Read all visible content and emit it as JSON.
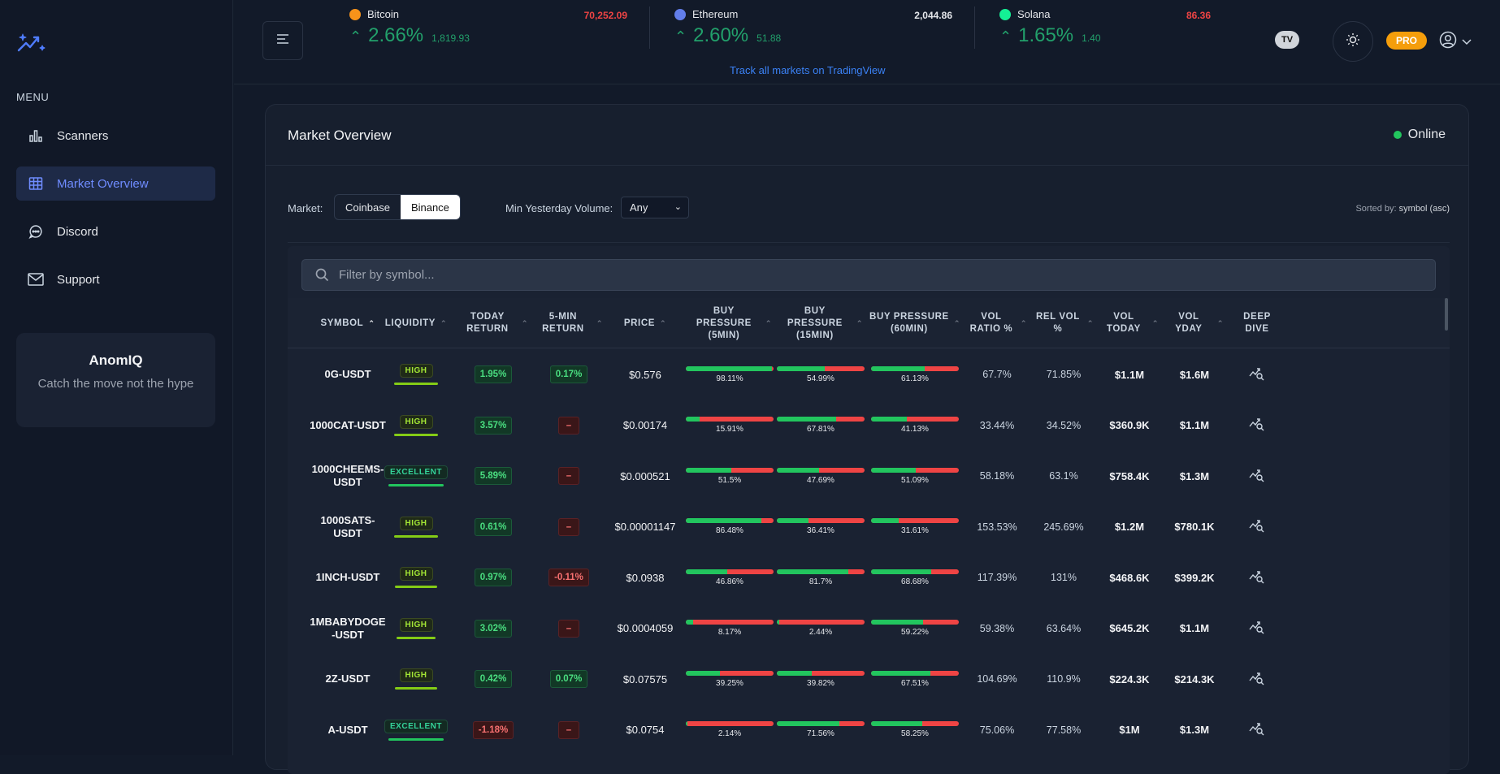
{
  "sidebar": {
    "menu_label": "MENU",
    "items": [
      {
        "label": "Scanners",
        "icon": "bar-chart-icon",
        "active": false
      },
      {
        "label": "Market Overview",
        "icon": "table-grid-icon",
        "active": true
      },
      {
        "label": "Discord",
        "icon": "chat-bubble-icon",
        "active": false
      },
      {
        "label": "Support",
        "icon": "mail-icon",
        "active": false
      }
    ],
    "promo": {
      "title": "AnomIQ",
      "subtitle": "Catch the move not the hype"
    }
  },
  "header": {
    "tickers": [
      {
        "name": "Bitcoin",
        "price": "70,252.09",
        "price_color": "#ef4444",
        "pct": "2.66%",
        "change": "1,819.93",
        "coin_color": "#f7931a"
      },
      {
        "name": "Ethereum",
        "price": "2,044.86",
        "price_color": "#e5e7eb",
        "pct": "2.60%",
        "change": "51.88",
        "coin_color": "#627eea"
      },
      {
        "name": "Solana",
        "price": "86.36",
        "price_color": "#ef4444",
        "pct": "1.65%",
        "change": "1.40",
        "coin_color": "#14f195"
      }
    ],
    "tv_link": "Track all markets on TradingView",
    "tv_badge": "TV",
    "pro_label": "PRO"
  },
  "panel": {
    "title": "Market Overview",
    "status": "Online",
    "market_label": "Market:",
    "markets": [
      "Coinbase",
      "Binance"
    ],
    "selected_market": "Binance",
    "volume_label": "Min Yesterday Volume:",
    "volume_value": "Any",
    "sorted_prefix": "Sorted by:",
    "sorted_value": "symbol (asc)",
    "search_placeholder": "Filter by symbol..."
  },
  "table": {
    "headers": [
      "SYMBOL",
      "LIQUIDITY",
      "TODAY RETURN",
      "5-MIN RETURN",
      "PRICE",
      "BUY PRESSURE (5MIN)",
      "BUY PRESSURE (15MIN)",
      "BUY PRESSURE (60MIN)",
      "VOL RATIO %",
      "REL VOL %",
      "VOL TODAY",
      "VOL YDAY",
      "DEEP DIVE"
    ],
    "rows": [
      {
        "symbol": "0G-USDT",
        "liquidity": "HIGH",
        "liq_fill": 0.85,
        "today": "1.95%",
        "today_pos": true,
        "five": "0.17%",
        "five_state": "pos",
        "price": "$0.576",
        "bp5": 98.11,
        "bp5_label": "98.11%",
        "bp15": 54.99,
        "bp15_label": "54.99%",
        "bp60": 61.13,
        "bp60_label": "61.13%",
        "vol_ratio": "67.7%",
        "rel_vol": "71.85%",
        "vol_today": "$1.1M",
        "vol_yday": "$1.6M"
      },
      {
        "symbol": "1000CAT-USDT",
        "liquidity": "HIGH",
        "liq_fill": 0.85,
        "today": "3.57%",
        "today_pos": true,
        "five": "–",
        "five_state": "na",
        "price": "$0.00174",
        "bp5": 15.91,
        "bp5_label": "15.91%",
        "bp15": 67.81,
        "bp15_label": "67.81%",
        "bp60": 41.13,
        "bp60_label": "41.13%",
        "vol_ratio": "33.44%",
        "rel_vol": "34.52%",
        "vol_today": "$360.9K",
        "vol_yday": "$1.1M"
      },
      {
        "symbol": "1000CHEEMS-USDT",
        "liquidity": "EXCELLENT",
        "liq_fill": 1.0,
        "today": "5.89%",
        "today_pos": true,
        "five": "–",
        "five_state": "na",
        "price": "$0.000521",
        "bp5": 51.5,
        "bp5_label": "51.5%",
        "bp15": 47.69,
        "bp15_label": "47.69%",
        "bp60": 51.09,
        "bp60_label": "51.09%",
        "vol_ratio": "58.18%",
        "rel_vol": "63.1%",
        "vol_today": "$758.4K",
        "vol_yday": "$1.3M"
      },
      {
        "symbol": "1000SATS-USDT",
        "liquidity": "HIGH",
        "liq_fill": 0.85,
        "today": "0.61%",
        "today_pos": true,
        "five": "–",
        "five_state": "na",
        "price": "$0.00001147",
        "bp5": 86.48,
        "bp5_label": "86.48%",
        "bp15": 36.41,
        "bp15_label": "36.41%",
        "bp60": 31.61,
        "bp60_label": "31.61%",
        "vol_ratio": "153.53%",
        "rel_vol": "245.69%",
        "vol_today": "$1.2M",
        "vol_yday": "$780.1K"
      },
      {
        "symbol": "1INCH-USDT",
        "liquidity": "HIGH",
        "liq_fill": 0.8,
        "today": "0.97%",
        "today_pos": true,
        "five": "-0.11%",
        "five_state": "neg",
        "price": "$0.0938",
        "bp5": 46.86,
        "bp5_label": "46.86%",
        "bp15": 81.7,
        "bp15_label": "81.7%",
        "bp60": 68.68,
        "bp60_label": "68.68%",
        "vol_ratio": "117.39%",
        "rel_vol": "131%",
        "vol_today": "$468.6K",
        "vol_yday": "$399.2K"
      },
      {
        "symbol": "1MBABYDOGE-USDT",
        "liquidity": "HIGH",
        "liq_fill": 0.75,
        "today": "3.02%",
        "today_pos": true,
        "five": "–",
        "five_state": "na",
        "price": "$0.0004059",
        "bp5": 8.17,
        "bp5_label": "8.17%",
        "bp15": 2.44,
        "bp15_label": "2.44%",
        "bp60": 59.22,
        "bp60_label": "59.22%",
        "vol_ratio": "59.38%",
        "rel_vol": "63.64%",
        "vol_today": "$645.2K",
        "vol_yday": "$1.1M"
      },
      {
        "symbol": "2Z-USDT",
        "liquidity": "HIGH",
        "liq_fill": 0.8,
        "today": "0.42%",
        "today_pos": true,
        "five": "0.07%",
        "five_state": "pos",
        "price": "$0.07575",
        "bp5": 39.25,
        "bp5_label": "39.25%",
        "bp15": 39.82,
        "bp15_label": "39.82%",
        "bp60": 67.51,
        "bp60_label": "67.51%",
        "vol_ratio": "104.69%",
        "rel_vol": "110.9%",
        "vol_today": "$224.3K",
        "vol_yday": "$214.3K"
      },
      {
        "symbol": "A-USDT",
        "liquidity": "EXCELLENT",
        "liq_fill": 1.0,
        "today": "-1.18%",
        "today_pos": false,
        "five": "–",
        "five_state": "na",
        "price": "$0.0754",
        "bp5": 2.14,
        "bp5_label": "2.14%",
        "bp15": 71.56,
        "bp15_label": "71.56%",
        "bp60": 58.25,
        "bp60_label": "58.25%",
        "vol_ratio": "75.06%",
        "rel_vol": "77.58%",
        "vol_today": "$1M",
        "vol_yday": "$1.3M"
      }
    ]
  }
}
